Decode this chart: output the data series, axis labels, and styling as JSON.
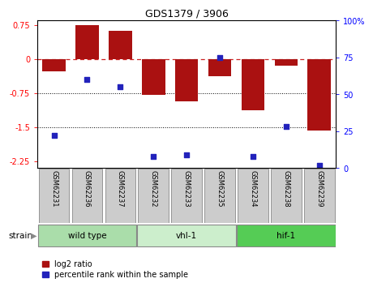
{
  "title": "GDS1379 / 3906",
  "samples": [
    "GSM62231",
    "GSM62236",
    "GSM62237",
    "GSM62232",
    "GSM62233",
    "GSM62235",
    "GSM62234",
    "GSM62238",
    "GSM62239"
  ],
  "log2_ratio": [
    -0.27,
    0.75,
    0.62,
    -0.78,
    -0.93,
    -0.38,
    -1.12,
    -0.14,
    -1.58
  ],
  "percentile_rank": [
    22,
    60,
    55,
    8,
    9,
    75,
    8,
    28,
    2
  ],
  "groups": [
    {
      "label": "wild type",
      "start": 0,
      "end": 2,
      "color": "#aaddaa"
    },
    {
      "label": "vhl-1",
      "start": 3,
      "end": 5,
      "color": "#cceecc"
    },
    {
      "label": "hif-1",
      "start": 6,
      "end": 8,
      "color": "#55cc55"
    }
  ],
  "ylim": [
    -2.4,
    0.85
  ],
  "right_ylim": [
    0,
    100
  ],
  "bar_color": "#aa1111",
  "dot_color": "#2222bb",
  "hline_color": "#cc2222",
  "dotline_color": "#000000",
  "left_yticks": [
    -2.25,
    -1.5,
    -0.75,
    0,
    0.75
  ],
  "right_yticks": [
    0,
    25,
    50,
    75,
    100
  ],
  "legend_items": [
    "log2 ratio",
    "percentile rank within the sample"
  ]
}
